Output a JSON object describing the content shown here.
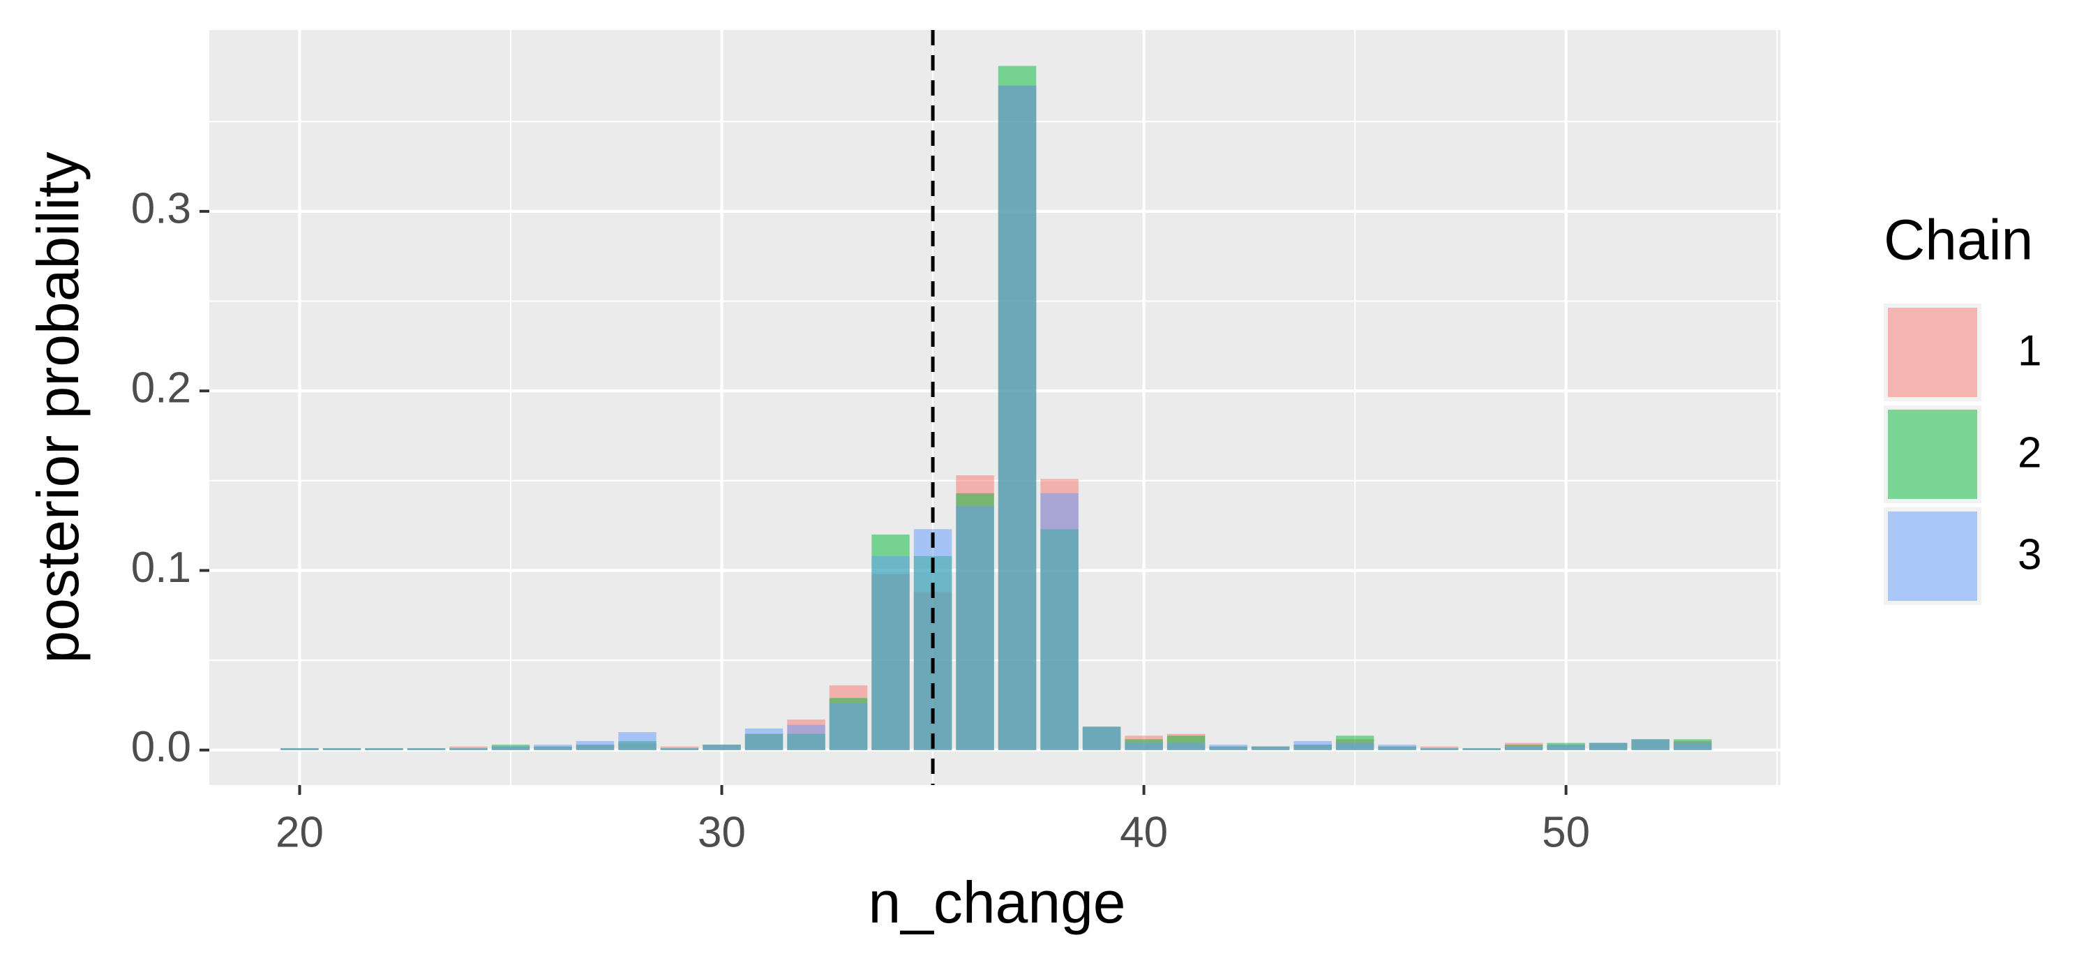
{
  "chart_data": {
    "type": "bar",
    "x_label": "n_change",
    "y_label": "posterior probability",
    "legend_title": "Chain",
    "legend_position": "right",
    "x": [
      20,
      21,
      22,
      23,
      24,
      25,
      26,
      27,
      28,
      29,
      30,
      31,
      32,
      33,
      34,
      35,
      36,
      37,
      38,
      39,
      40,
      41,
      42,
      43,
      44,
      45,
      46,
      47,
      48,
      49,
      50,
      51,
      52,
      53
    ],
    "series": [
      {
        "name": "1",
        "color": "#F8766D",
        "values": [
          0.001,
          0.001,
          0.001,
          0.001,
          0.002,
          0.002,
          0.002,
          0.003,
          0.004,
          0.002,
          0.003,
          0.009,
          0.017,
          0.036,
          0.098,
          0.088,
          0.153,
          0.37,
          0.151,
          0.013,
          0.008,
          0.009,
          0.002,
          0.002,
          0.003,
          0.006,
          0.002,
          0.002,
          0.001,
          0.004,
          0.003,
          0.004,
          0.006,
          0.005
        ]
      },
      {
        "name": "2",
        "color": "#00BA38",
        "values": [
          0.001,
          0.001,
          0.001,
          0.001,
          0.001,
          0.003,
          0.002,
          0.003,
          0.005,
          0.001,
          0.003,
          0.009,
          0.009,
          0.029,
          0.12,
          0.108,
          0.143,
          0.381,
          0.123,
          0.013,
          0.006,
          0.008,
          0.002,
          0.002,
          0.003,
          0.008,
          0.002,
          0.001,
          0.001,
          0.003,
          0.004,
          0.004,
          0.006,
          0.006
        ]
      },
      {
        "name": "3",
        "color": "#619CFF",
        "values": [
          0.001,
          0.001,
          0.001,
          0.001,
          0.001,
          0.002,
          0.003,
          0.005,
          0.01,
          0.001,
          0.003,
          0.012,
          0.014,
          0.026,
          0.108,
          0.123,
          0.136,
          0.37,
          0.143,
          0.013,
          0.004,
          0.004,
          0.003,
          0.002,
          0.005,
          0.004,
          0.003,
          0.001,
          0.001,
          0.002,
          0.003,
          0.004,
          0.006,
          0.004
        ]
      }
    ],
    "bar_width": 0.9,
    "alpha": 0.5,
    "vline": 35,
    "xlim": [
      17.86,
      55.08
    ],
    "xticks": [
      20,
      30,
      40,
      50
    ],
    "ylim": [
      -0.0195,
      0.401
    ],
    "yticks": [
      {
        "value": 0,
        "label": "0.0"
      },
      0.1,
      0.2,
      0.3
    ],
    "grid": true,
    "minor_grid": true
  }
}
